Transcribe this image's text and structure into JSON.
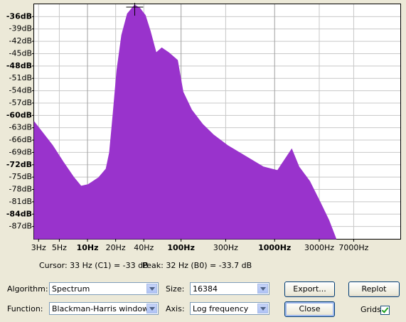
{
  "chart_data": {
    "type": "area",
    "x": [
      2.7,
      3.24,
      4.23,
      5.5,
      7.16,
      8.54,
      10.2,
      13.2,
      15.8,
      17.2,
      18.8,
      20.6,
      23.2,
      26.7,
      31.9,
      36.1,
      41.5,
      47,
      54.1,
      62.2,
      74.2,
      91.6,
      105,
      130,
      169,
      221,
      313,
      487,
      755,
      1074,
      1524,
      1820,
      2366,
      3083,
      3802,
      4529
    ],
    "values": [
      -61.6,
      -63.9,
      -67.3,
      -71.3,
      -75.1,
      -77.2,
      -76.8,
      -75.1,
      -73,
      -69,
      -59.5,
      -49.1,
      -40.5,
      -35.3,
      -33.2,
      -33.9,
      -35.7,
      -39.6,
      -44.8,
      -43.6,
      -44.8,
      -46.6,
      -54.3,
      -58.7,
      -62.1,
      -64.7,
      -67.3,
      -69.9,
      -72.5,
      -73.4,
      -68.2,
      -72.5,
      -76,
      -81.2,
      -85.5,
      -90
    ],
    "color": "#9933cc",
    "xlim": [
      2.69,
      22050
    ],
    "log_x": true,
    "xticks": [
      {
        "value": 3,
        "label": "3Hz"
      },
      {
        "value": 5,
        "label": "5Hz"
      },
      {
        "value": 10,
        "label": "10Hz"
      },
      {
        "value": 20,
        "label": "20Hz"
      },
      {
        "value": 40,
        "label": "40Hz"
      },
      {
        "value": 100,
        "label": "100Hz"
      },
      {
        "value": 300,
        "label": "300Hz"
      },
      {
        "value": 1000,
        "label": "1000Hz"
      },
      {
        "value": 3000,
        "label": "3000Hz"
      },
      {
        "value": 7000,
        "label": "7000Hz"
      }
    ],
    "ylim": [
      -90,
      -33
    ],
    "yticks": [
      {
        "value": -36,
        "label": "-36dB"
      },
      {
        "value": -39,
        "label": "-39dB"
      },
      {
        "value": -42,
        "label": "-42dB"
      },
      {
        "value": -45,
        "label": "-45dB"
      },
      {
        "value": -48,
        "label": "-48dB"
      },
      {
        "value": -51,
        "label": "-51dB"
      },
      {
        "value": -54,
        "label": "-54dB"
      },
      {
        "value": -57,
        "label": "-57dB"
      },
      {
        "value": -60,
        "label": "-60dB"
      },
      {
        "value": -63,
        "label": "-63dB"
      },
      {
        "value": -66,
        "label": "-66dB"
      },
      {
        "value": -69,
        "label": "-69dB"
      },
      {
        "value": -72,
        "label": "-72dB"
      },
      {
        "value": -75,
        "label": "-75dB"
      },
      {
        "value": -78,
        "label": "-78dB"
      },
      {
        "value": -81,
        "label": "-81dB"
      },
      {
        "value": -84,
        "label": "-84dB"
      },
      {
        "value": -87,
        "label": "-87dB"
      }
    ],
    "grid": true,
    "marker": [
      32,
      -33.7
    ]
  },
  "status": {
    "cursor": "Cursor: 33 Hz (C1) = -33 dB",
    "peak": "Peak: 32 Hz (B0) = -33.7 dB"
  },
  "controls": {
    "algorithm_label": "Algorithm:",
    "algorithm": "Spectrum",
    "size_label": "Size:",
    "size": "16384",
    "export": "Export...",
    "replot": "Replot",
    "function_label": "Function:",
    "function": "Blackman-Harris window",
    "axis_label": "Axis:",
    "axis": "Log frequency",
    "close": "Close",
    "grids": "Grids"
  }
}
